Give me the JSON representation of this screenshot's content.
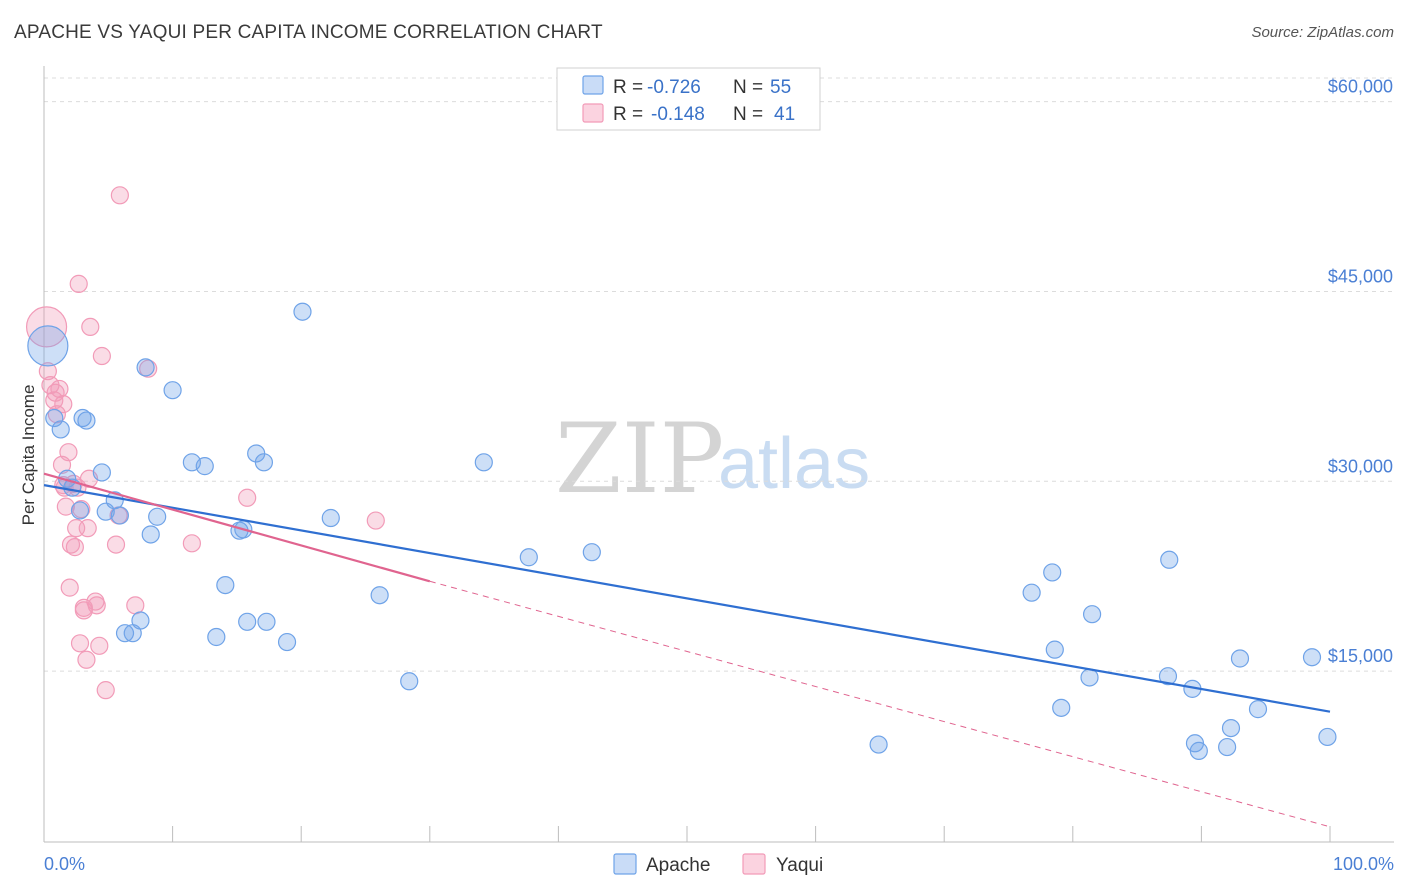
{
  "title": "APACHE VS YAQUI PER CAPITA INCOME CORRELATION CHART",
  "source": "Source: ZipAtlas.com",
  "colors": {
    "apache": "#6fa3e8",
    "apache_line": "#2f6fd1",
    "yaqui": "#f29bb8",
    "yaqui_line": "#e0648f",
    "grid": "#dcdcdc",
    "axis_label": "#4a7fd4"
  },
  "legend": {
    "apache": {
      "r_label": "R =",
      "r_value": "-0.726",
      "n_label": "N =",
      "n_value": "55"
    },
    "yaqui": {
      "r_label": "R =",
      "r_value": "-0.148",
      "n_label": "N =",
      "n_value": "41"
    }
  },
  "watermark": {
    "zip": "ZIP",
    "atlas": "atlas"
  },
  "chart_data": {
    "type": "scatter",
    "title": "APACHE VS YAQUI PER CAPITA INCOME CORRELATION CHART",
    "xlabel": "",
    "ylabel": "Per Capita Income",
    "xlim": [
      0,
      100
    ],
    "ylim": [
      1500,
      62500
    ],
    "x_tick_labels": [
      "0.0%",
      "100.0%"
    ],
    "y_ticks": [
      15000,
      30000,
      45000,
      60000
    ],
    "y_tick_labels": [
      "$15,000",
      "$30,000",
      "$45,000",
      "$60,000"
    ],
    "grid": true,
    "legend_position": "top-center",
    "series": [
      {
        "name": "Apache",
        "r": -0.726,
        "n": 55,
        "trend": {
          "x": [
            0,
            100
          ],
          "y": [
            29700,
            11800
          ],
          "style": "solid"
        },
        "points": [
          {
            "x": 0.3,
            "y": 40700,
            "big": true
          },
          {
            "x": 0.8,
            "y": 35000
          },
          {
            "x": 1.3,
            "y": 34100
          },
          {
            "x": 1.8,
            "y": 30200
          },
          {
            "x": 2.2,
            "y": 29500
          },
          {
            "x": 2.8,
            "y": 27700
          },
          {
            "x": 3.3,
            "y": 34800
          },
          {
            "x": 4.5,
            "y": 30700
          },
          {
            "x": 4.8,
            "y": 27600
          },
          {
            "x": 5.5,
            "y": 28500
          },
          {
            "x": 5.9,
            "y": 27300
          },
          {
            "x": 6.3,
            "y": 18000
          },
          {
            "x": 6.9,
            "y": 18000
          },
          {
            "x": 7.5,
            "y": 19000
          },
          {
            "x": 7.9,
            "y": 39000
          },
          {
            "x": 8.3,
            "y": 25800
          },
          {
            "x": 8.8,
            "y": 27200
          },
          {
            "x": 10.0,
            "y": 37200
          },
          {
            "x": 11.5,
            "y": 31500
          },
          {
            "x": 12.5,
            "y": 31200
          },
          {
            "x": 13.4,
            "y": 17700
          },
          {
            "x": 14.1,
            "y": 21800
          },
          {
            "x": 15.2,
            "y": 26100
          },
          {
            "x": 15.5,
            "y": 26200
          },
          {
            "x": 15.8,
            "y": 18900
          },
          {
            "x": 16.5,
            "y": 32200
          },
          {
            "x": 17.1,
            "y": 31500
          },
          {
            "x": 17.3,
            "y": 18900
          },
          {
            "x": 18.9,
            "y": 17300
          },
          {
            "x": 20.1,
            "y": 43400
          },
          {
            "x": 22.3,
            "y": 27100
          },
          {
            "x": 26.1,
            "y": 21000
          },
          {
            "x": 28.4,
            "y": 14200
          },
          {
            "x": 34.2,
            "y": 31500
          },
          {
            "x": 37.7,
            "y": 24000
          },
          {
            "x": 42.6,
            "y": 24400
          },
          {
            "x": 64.9,
            "y": 9200
          },
          {
            "x": 76.8,
            "y": 21200
          },
          {
            "x": 78.4,
            "y": 22800
          },
          {
            "x": 78.6,
            "y": 16700
          },
          {
            "x": 79.1,
            "y": 12100
          },
          {
            "x": 81.3,
            "y": 14500
          },
          {
            "x": 81.5,
            "y": 19500
          },
          {
            "x": 87.4,
            "y": 14600
          },
          {
            "x": 87.5,
            "y": 23800
          },
          {
            "x": 89.3,
            "y": 13600
          },
          {
            "x": 89.5,
            "y": 9300
          },
          {
            "x": 89.8,
            "y": 8700
          },
          {
            "x": 92.0,
            "y": 9000
          },
          {
            "x": 92.3,
            "y": 10500
          },
          {
            "x": 93.0,
            "y": 16000
          },
          {
            "x": 94.4,
            "y": 12000
          },
          {
            "x": 98.6,
            "y": 16100
          },
          {
            "x": 99.8,
            "y": 9800
          },
          {
            "x": 3.0,
            "y": 35000
          }
        ]
      },
      {
        "name": "Yaqui",
        "r": -0.148,
        "n": 41,
        "trend": {
          "x": [
            0,
            30,
            100
          ],
          "y": [
            30600,
            22100,
            2700
          ],
          "style": "solid-then-dashed",
          "solid_until_x": 30
        },
        "points": [
          {
            "x": 0.2,
            "y": 42200,
            "big": true
          },
          {
            "x": 0.3,
            "y": 38700
          },
          {
            "x": 0.5,
            "y": 37600
          },
          {
            "x": 0.8,
            "y": 36400
          },
          {
            "x": 1.0,
            "y": 35300
          },
          {
            "x": 1.2,
            "y": 37300
          },
          {
            "x": 1.4,
            "y": 31300
          },
          {
            "x": 1.5,
            "y": 29700
          },
          {
            "x": 1.6,
            "y": 29500
          },
          {
            "x": 1.5,
            "y": 36100
          },
          {
            "x": 1.7,
            "y": 28000
          },
          {
            "x": 1.9,
            "y": 32300
          },
          {
            "x": 2.0,
            "y": 21600
          },
          {
            "x": 2.1,
            "y": 25000
          },
          {
            "x": 2.3,
            "y": 29800
          },
          {
            "x": 2.4,
            "y": 24800
          },
          {
            "x": 2.5,
            "y": 26300
          },
          {
            "x": 2.6,
            "y": 29500
          },
          {
            "x": 2.7,
            "y": 45600
          },
          {
            "x": 2.8,
            "y": 17200
          },
          {
            "x": 2.9,
            "y": 27800
          },
          {
            "x": 3.1,
            "y": 19800
          },
          {
            "x": 3.1,
            "y": 20000
          },
          {
            "x": 3.3,
            "y": 15900
          },
          {
            "x": 3.4,
            "y": 26300
          },
          {
            "x": 3.5,
            "y": 30200
          },
          {
            "x": 3.6,
            "y": 42200
          },
          {
            "x": 4.0,
            "y": 20500
          },
          {
            "x": 4.1,
            "y": 20200
          },
          {
            "x": 4.3,
            "y": 17000
          },
          {
            "x": 4.5,
            "y": 39900
          },
          {
            "x": 4.8,
            "y": 13500
          },
          {
            "x": 5.6,
            "y": 25000
          },
          {
            "x": 5.8,
            "y": 27300
          },
          {
            "x": 5.9,
            "y": 52600
          },
          {
            "x": 7.1,
            "y": 20200
          },
          {
            "x": 8.1,
            "y": 38900
          },
          {
            "x": 11.5,
            "y": 25100
          },
          {
            "x": 15.8,
            "y": 28700
          },
          {
            "x": 25.8,
            "y": 26900
          },
          {
            "x": 0.9,
            "y": 37000
          }
        ]
      }
    ]
  }
}
